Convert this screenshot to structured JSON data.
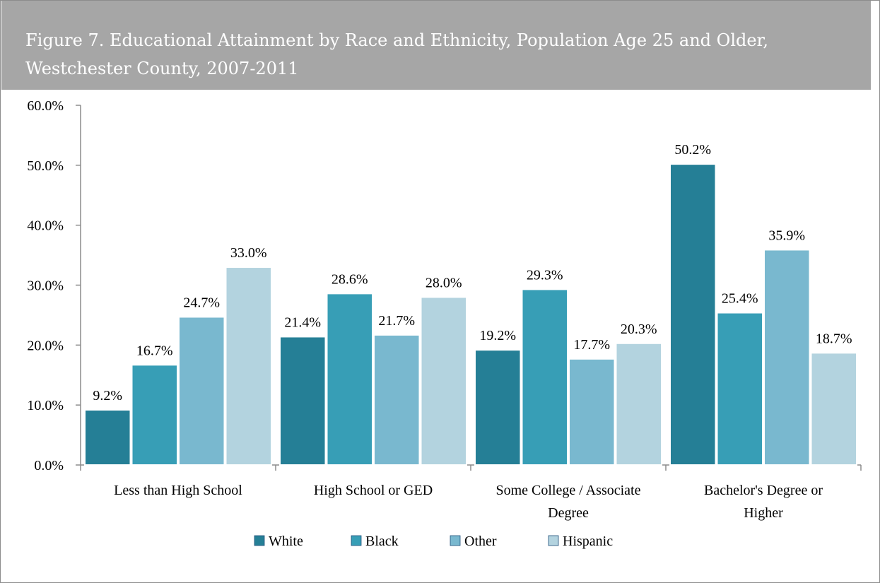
{
  "title": "Figure 7. Educational Attainment by Race and Ethnicity, Population Age 25 and Older, Westchester County, 2007-2011",
  "chart_data": {
    "type": "bar",
    "title": "Figure 7. Educational Attainment by Race and Ethnicity, Population Age 25 and Older, Westchester County, 2007-2011",
    "xlabel": "",
    "ylabel": "",
    "ylim": [
      0,
      60
    ],
    "yticks": [
      "0.0%",
      "10.0%",
      "20.0%",
      "30.0%",
      "40.0%",
      "50.0%",
      "60.0%"
    ],
    "categories": [
      [
        "Less than  High School"
      ],
      [
        "High School or GED"
      ],
      [
        "Some College / Associate",
        "Degree"
      ],
      [
        "Bachelor's Degree or",
        "Higher"
      ]
    ],
    "series": [
      {
        "name": "White",
        "color": "#257f96",
        "values": [
          9.2,
          21.4,
          19.2,
          50.2
        ],
        "labels": [
          "9.2%",
          "21.4%",
          "19.2%",
          "50.2%"
        ]
      },
      {
        "name": "Black",
        "color": "#379eb6",
        "values": [
          16.7,
          28.6,
          29.3,
          25.4
        ],
        "labels": [
          "16.7%",
          "28.6%",
          "29.3%",
          "25.4%"
        ]
      },
      {
        "name": "Other",
        "color": "#79b8cf",
        "values": [
          24.7,
          21.7,
          17.7,
          35.9
        ],
        "labels": [
          "24.7%",
          "21.7%",
          "17.7%",
          "35.9%"
        ]
      },
      {
        "name": "Hispanic",
        "color": "#b3d3df",
        "values": [
          33.0,
          28.0,
          20.3,
          18.7
        ],
        "labels": [
          "33.0%",
          "28.0%",
          "20.3%",
          "18.7%"
        ]
      }
    ],
    "grid": false,
    "legend": "bottom"
  }
}
